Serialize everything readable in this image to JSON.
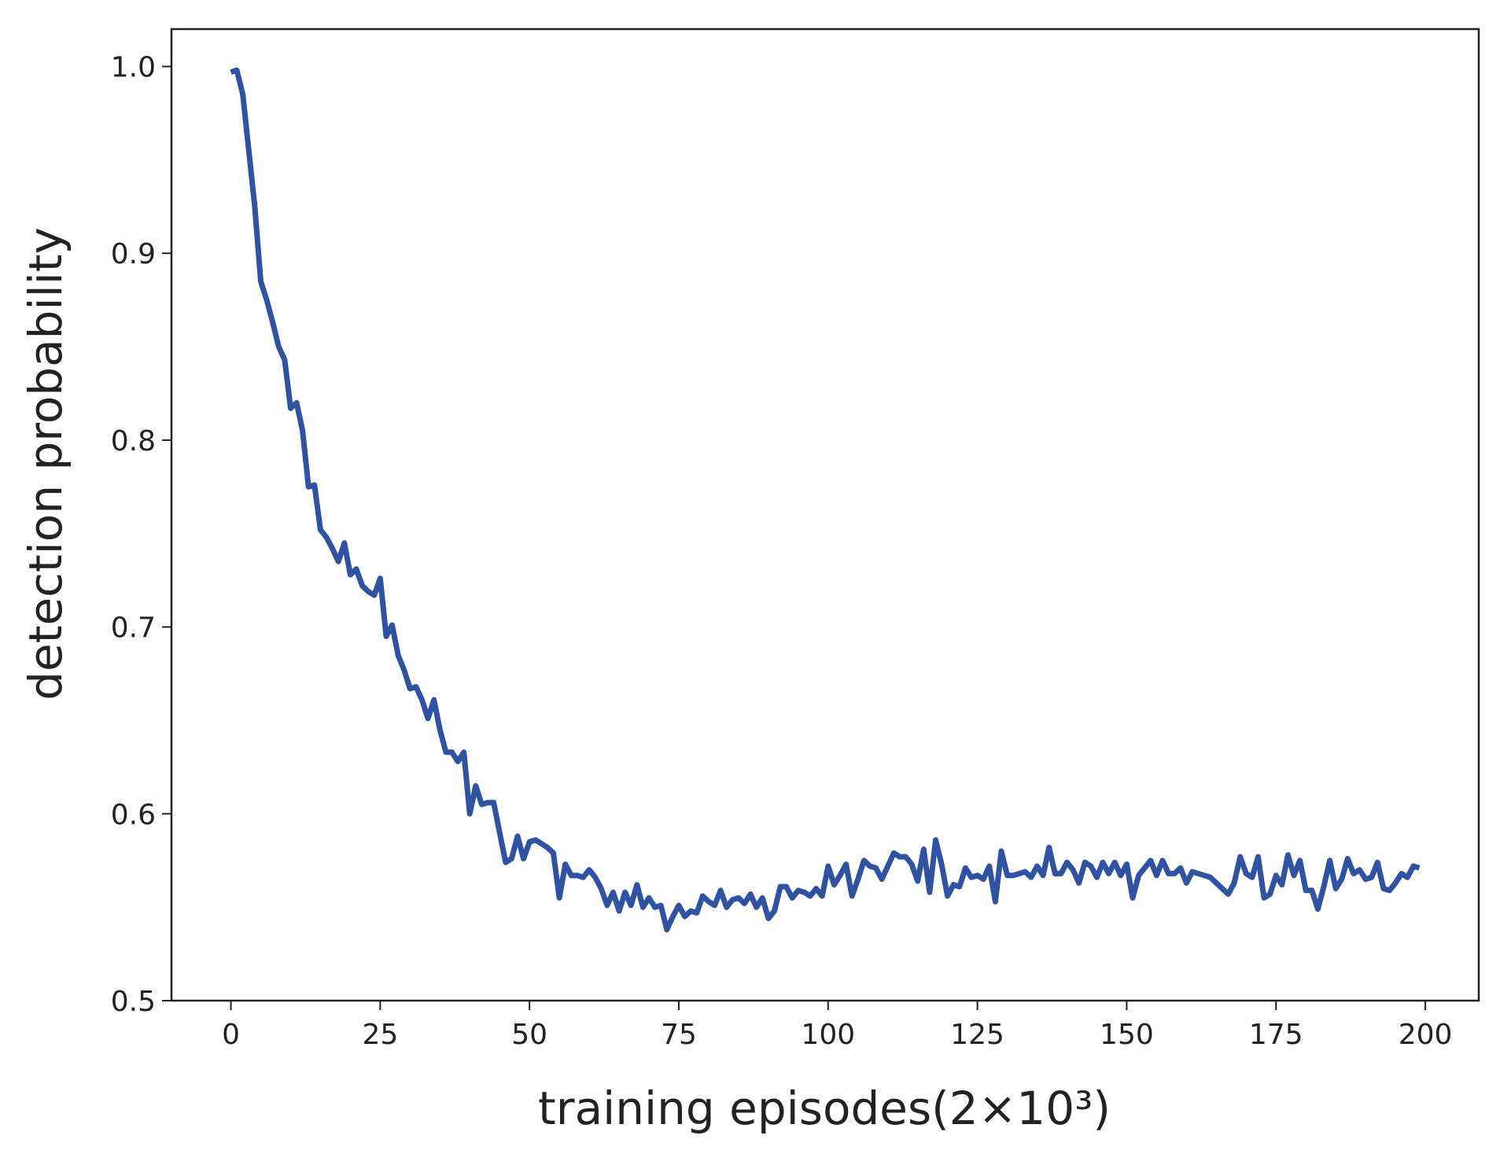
{
  "chart_data": {
    "type": "line",
    "xlabel": "training episodes(2×10³)",
    "ylabel": "detection probability",
    "x": [
      0,
      1,
      2,
      3,
      4,
      5,
      6,
      7,
      8,
      9,
      10,
      11,
      12,
      13,
      14,
      15,
      16,
      17,
      18,
      19,
      20,
      21,
      22,
      23,
      24,
      25,
      26,
      27,
      28,
      29,
      30,
      31,
      32,
      33,
      34,
      35,
      36,
      37,
      38,
      39,
      40,
      41,
      42,
      43,
      44,
      45,
      46,
      47,
      48,
      49,
      50,
      51,
      52,
      53,
      54,
      55,
      56,
      57,
      58,
      59,
      60,
      61,
      62,
      63,
      64,
      65,
      66,
      67,
      68,
      69,
      70,
      71,
      72,
      73,
      74,
      75,
      76,
      77,
      78,
      79,
      80,
      81,
      82,
      83,
      84,
      85,
      86,
      87,
      88,
      89,
      90,
      91,
      92,
      93,
      94,
      95,
      96,
      97,
      98,
      99,
      100,
      101,
      102,
      103,
      104,
      105,
      106,
      107,
      108,
      109,
      110,
      111,
      112,
      113,
      114,
      115,
      116,
      117,
      118,
      119,
      120,
      121,
      122,
      123,
      124,
      125,
      126,
      127,
      128,
      129,
      130,
      131,
      132,
      133,
      134,
      135,
      136,
      137,
      138,
      139,
      140,
      141,
      142,
      143,
      144,
      145,
      146,
      147,
      148,
      149,
      150,
      151,
      152,
      153,
      154,
      155,
      156,
      157,
      158,
      159,
      160,
      161,
      162,
      163,
      164,
      165,
      166,
      167,
      168,
      169,
      170,
      171,
      172,
      173,
      174,
      175,
      176,
      177,
      178,
      179,
      180,
      181,
      182,
      183,
      184,
      185,
      186,
      187,
      188,
      189,
      190,
      191,
      192,
      193,
      194,
      195,
      196,
      197,
      198,
      199
    ],
    "series": [
      {
        "name": "detection probability",
        "color": "#2f52a3",
        "values": [
          0.997,
          0.998,
          0.985,
          0.955,
          0.925,
          0.885,
          0.875,
          0.863,
          0.85,
          0.843,
          0.817,
          0.82,
          0.805,
          0.775,
          0.776,
          0.752,
          0.748,
          0.742,
          0.735,
          0.745,
          0.728,
          0.731,
          0.722,
          0.719,
          0.717,
          0.726,
          0.695,
          0.701,
          0.685,
          0.677,
          0.667,
          0.668,
          0.661,
          0.651,
          0.661,
          0.645,
          0.633,
          0.633,
          0.628,
          0.633,
          0.6,
          0.615,
          0.605,
          0.606,
          0.606,
          0.59,
          0.574,
          0.576,
          0.588,
          0.576,
          0.585,
          0.586,
          0.584,
          0.582,
          0.579,
          0.555,
          0.573,
          0.567,
          0.567,
          0.566,
          0.57,
          0.566,
          0.56,
          0.551,
          0.558,
          0.548,
          0.558,
          0.551,
          0.562,
          0.55,
          0.555,
          0.55,
          0.551,
          0.538,
          0.545,
          0.551,
          0.545,
          0.548,
          0.547,
          0.556,
          0.553,
          0.551,
          0.559,
          0.55,
          0.554,
          0.555,
          0.552,
          0.557,
          0.55,
          0.555,
          0.544,
          0.548,
          0.561,
          0.561,
          0.555,
          0.559,
          0.558,
          0.556,
          0.56,
          0.556,
          0.572,
          0.562,
          0.567,
          0.573,
          0.556,
          0.565,
          0.575,
          0.572,
          0.571,
          0.565,
          0.572,
          0.579,
          0.577,
          0.577,
          0.573,
          0.564,
          0.581,
          0.558,
          0.586,
          0.573,
          0.556,
          0.562,
          0.561,
          0.571,
          0.566,
          0.567,
          0.565,
          0.572,
          0.553,
          0.58,
          0.567,
          0.567,
          0.568,
          0.569,
          0.566,
          0.572,
          0.567,
          0.582,
          0.568,
          0.568,
          0.574,
          0.57,
          0.563,
          0.574,
          0.572,
          0.566,
          0.574,
          0.568,
          0.574,
          0.567,
          0.573,
          0.555,
          0.567,
          0.571,
          0.575,
          0.567,
          0.575,
          0.568,
          0.568,
          0.571,
          0.563,
          0.569,
          0.568,
          0.567,
          0.566,
          0.563,
          0.56,
          0.557,
          0.563,
          0.577,
          0.568,
          0.566,
          0.577,
          0.555,
          0.557,
          0.567,
          0.562,
          0.578,
          0.567,
          0.575,
          0.559,
          0.559,
          0.549,
          0.561,
          0.575,
          0.56,
          0.565,
          0.576,
          0.568,
          0.57,
          0.565,
          0.566,
          0.574,
          0.56,
          0.559,
          0.563,
          0.568,
          0.566,
          0.572,
          0.571
        ]
      }
    ],
    "xlim": [
      -9.95,
      208.95
    ],
    "xticks": [
      0,
      25,
      50,
      75,
      100,
      125,
      150,
      175,
      200
    ],
    "ylim": [
      0.5,
      1.02
    ],
    "yticks": [
      0.5,
      0.6,
      0.7,
      0.8,
      0.9,
      {
        "value": 1,
        "label": "1.0"
      }
    ],
    "grid": false
  }
}
